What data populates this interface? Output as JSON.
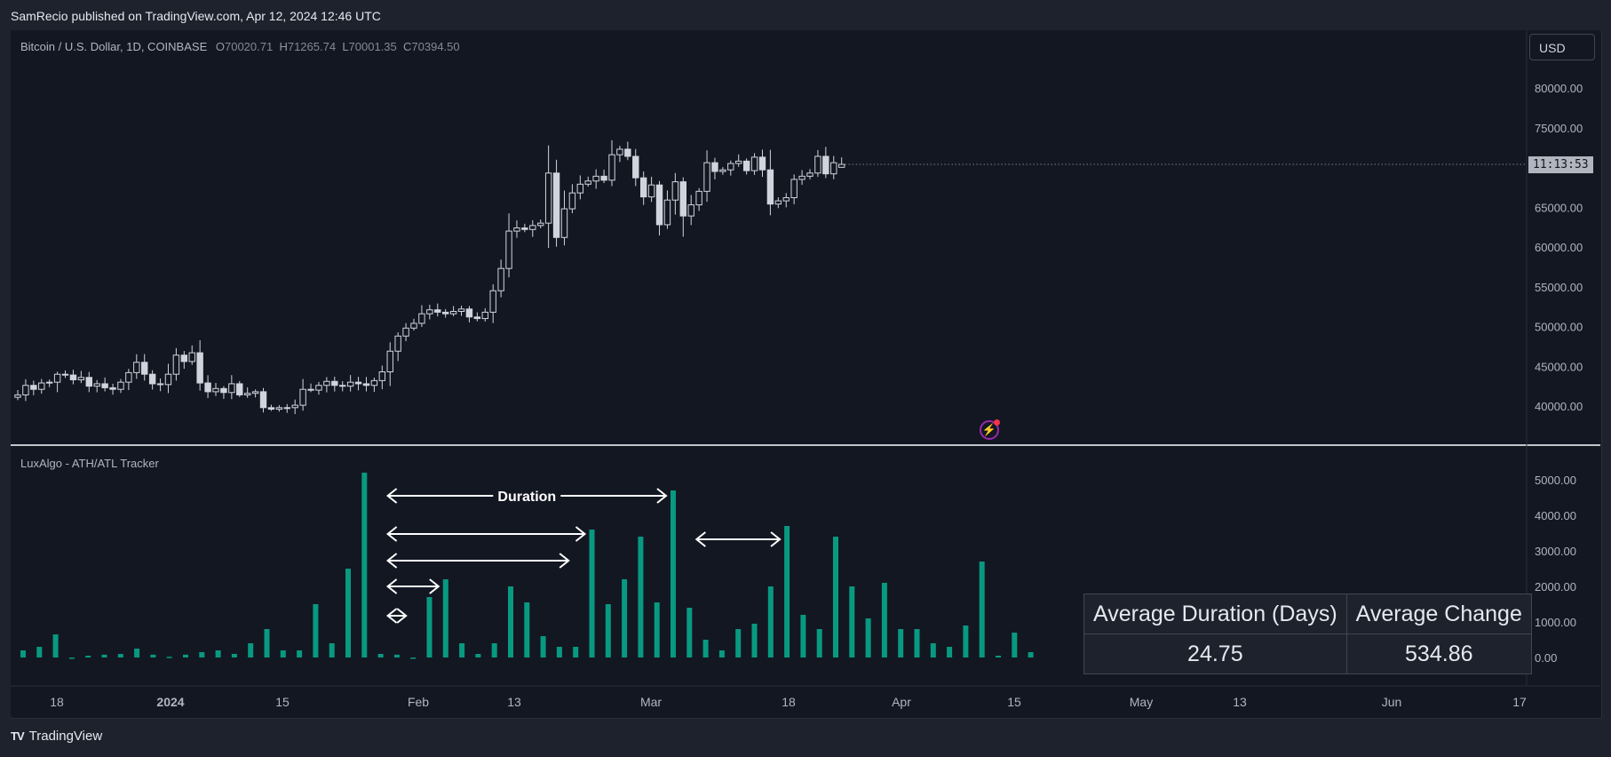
{
  "header": {
    "text": "SamRecio published on TradingView.com, Apr 12, 2024 12:46 UTC"
  },
  "footer": {
    "logo": "TV",
    "brand": "TradingView"
  },
  "symbol": {
    "title": "Bitcoin / U.S. Dollar, 1D, COINBASE",
    "open": "70020.71",
    "high": "71265.74",
    "low": "70001.35",
    "close": "70394.50"
  },
  "currency": "USD",
  "countdown": "11:13:53",
  "indicator": {
    "name": "LuxAlgo - ATH/ATL Tracker",
    "duration_label": "Duration"
  },
  "stats": {
    "h1": "Average Duration (Days)",
    "h2": "Average Change",
    "v1": "24.75",
    "v2": "534.86"
  },
  "colors": {
    "bg": "#131722",
    "candle": "#d1d4dc",
    "bar": "#089981",
    "grid": "#2a2e39"
  },
  "chart_data": [
    {
      "type": "candlestick",
      "title": "Bitcoin / U.S. Dollar, 1D, COINBASE",
      "y_ticks": [
        "80000.00",
        "75000.00",
        "65000.00",
        "60000.00",
        "55000.00",
        "50000.00",
        "45000.00",
        "40000.00"
      ],
      "ylim": [
        36000,
        82000
      ],
      "x_ticks": [
        "18",
        "2024",
        "15",
        "Feb",
        "13",
        "Mar",
        "18",
        "Apr",
        "15",
        "May",
        "13",
        "Jun",
        "17"
      ],
      "closes": [
        41400,
        42600,
        42100,
        42900,
        43000,
        44000,
        43900,
        43300,
        43600,
        42500,
        42800,
        42300,
        42100,
        43000,
        44200,
        45500,
        44000,
        42800,
        42700,
        44000,
        46400,
        45600,
        46700,
        42900,
        41800,
        42200,
        41700,
        42800,
        41400,
        41600,
        41800,
        39800,
        39600,
        39800,
        39800,
        40100,
        42100,
        42000,
        42600,
        43100,
        42600,
        42500,
        43000,
        42800,
        42600,
        43200,
        44300,
        46900,
        48800,
        49800,
        50400,
        51600,
        52100,
        51800,
        51600,
        51900,
        52200,
        51200,
        51000,
        51800,
        54500,
        57300,
        62000,
        62400,
        62200,
        62700,
        63000,
        69300,
        61200,
        64800,
        66800,
        67900,
        68300,
        68900,
        68400,
        71600,
        72300,
        71400,
        68700,
        66300,
        67800,
        62800,
        65900,
        68200,
        63900,
        65300,
        67000,
        70600,
        69500,
        69700,
        70500,
        70800,
        69600,
        71300,
        69700,
        65400,
        65800,
        66200,
        68500,
        68900,
        69300,
        71400,
        69200,
        70600,
        70400
      ],
      "last_close": 70394.5,
      "last_high": 71265.74,
      "last_low": 70001.35,
      "last_open": 70020.71
    },
    {
      "type": "bar",
      "title": "LuxAlgo - ATH/ATL Tracker",
      "y_ticks": [
        "5000.00",
        "4000.00",
        "3000.00",
        "2000.00",
        "1000.00",
        "0.00"
      ],
      "ylim": [
        0,
        5300
      ],
      "values": [
        200,
        300,
        650,
        0,
        50,
        80,
        100,
        250,
        80,
        20,
        80,
        150,
        200,
        100,
        400,
        800,
        200,
        200,
        1500,
        400,
        2500,
        5200,
        100,
        80,
        0,
        1700,
        2200,
        400,
        100,
        400,
        2000,
        1550,
        600,
        300,
        300,
        3600,
        1500,
        2200,
        3400,
        1550,
        4700,
        1400,
        500,
        200,
        800,
        950,
        2000,
        3700,
        1200,
        800,
        3400,
        2000,
        1100,
        2100,
        800,
        800,
        400,
        300,
        900,
        2700,
        50,
        700,
        150
      ],
      "annotations": [
        {
          "from_bar": 22,
          "to_bar": 40,
          "label": "Duration"
        },
        {
          "from_bar": 22,
          "to_bar": 35,
          "label": ""
        },
        {
          "from_bar": 22,
          "to_bar": 34,
          "label": ""
        },
        {
          "from_bar": 22,
          "to_bar": 26,
          "label": ""
        },
        {
          "from_bar": 22,
          "to_bar": 24,
          "label": ""
        },
        {
          "from_bar": 41,
          "to_bar": 47,
          "label": ""
        }
      ]
    }
  ]
}
